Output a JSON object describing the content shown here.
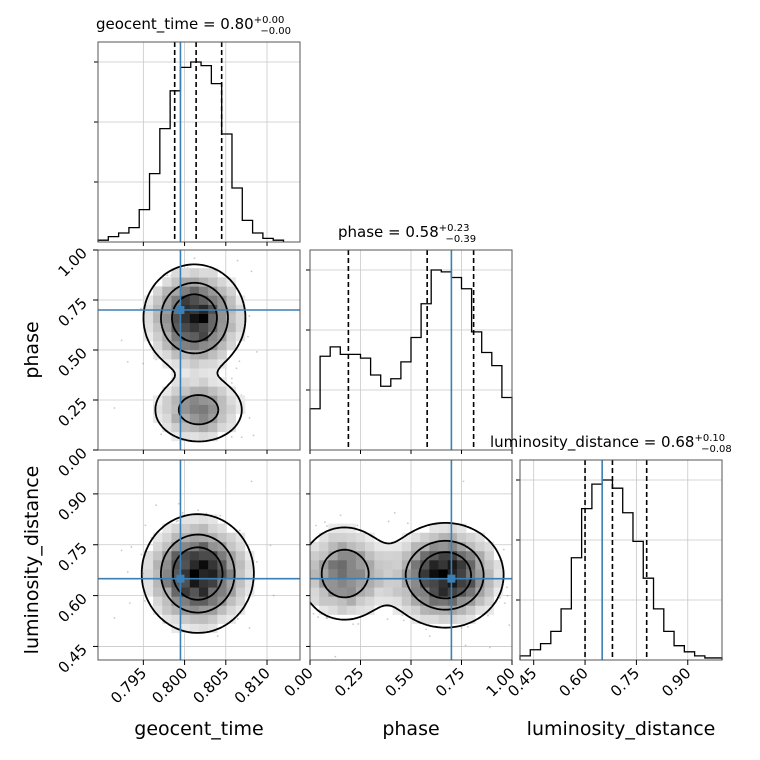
{
  "chart_data": {
    "type": "corner",
    "parameters": [
      {
        "key": "geocent_time",
        "label": "geocent_time",
        "title_main": "geocent_time = 0.80",
        "title_sup": "+0.00",
        "title_sub": "−0.00",
        "range": [
          0.7895,
          0.814
        ],
        "ticks": [
          0.795,
          0.8,
          0.805,
          0.81
        ],
        "tick_labels": [
          "0.795",
          "0.800",
          "0.805",
          "0.810"
        ],
        "truth": 0.7995,
        "quantiles": [
          0.7988,
          0.8014,
          0.8045
        ],
        "hist_bin_edges": [
          0.7895,
          0.79075,
          0.792,
          0.79325,
          0.7945,
          0.79575,
          0.797,
          0.79825,
          0.7995,
          0.80075,
          0.802,
          0.80325,
          0.8045,
          0.80575,
          0.807,
          0.80825,
          0.8095,
          0.81075,
          0.812
        ],
        "hist_counts": [
          0.01,
          0.03,
          0.05,
          0.08,
          0.18,
          0.38,
          0.63,
          0.84,
          0.97,
          1.0,
          0.98,
          0.88,
          0.6,
          0.3,
          0.12,
          0.05,
          0.02,
          0.01
        ]
      },
      {
        "key": "phase",
        "label": "phase",
        "title_main": "phase = 0.58",
        "title_sup": "+0.23",
        "title_sub": "−0.39",
        "range": [
          0.0,
          1.0
        ],
        "ticks": [
          0.0,
          0.25,
          0.5,
          0.75,
          1.0
        ],
        "tick_labels": [
          "0.00",
          "0.25",
          "0.50",
          "0.75",
          "1.00"
        ],
        "truth": 0.7,
        "quantiles": [
          0.19,
          0.58,
          0.81
        ],
        "hist_bin_edges": [
          0.0,
          0.05,
          0.1,
          0.15,
          0.2,
          0.25,
          0.3,
          0.35,
          0.4,
          0.45,
          0.5,
          0.55,
          0.6,
          0.65,
          0.7,
          0.75,
          0.8,
          0.85,
          0.9,
          0.95,
          1.0
        ],
        "hist_counts": [
          0.22,
          0.5,
          0.55,
          0.51,
          0.51,
          0.49,
          0.4,
          0.34,
          0.38,
          0.47,
          0.6,
          0.78,
          0.96,
          0.95,
          0.92,
          0.86,
          0.63,
          0.52,
          0.45,
          0.28
        ]
      },
      {
        "key": "luminosity_distance",
        "label": "luminosity_distance",
        "title_main": "luminosity_distance = 0.68",
        "title_sup": "+0.10",
        "title_sub": "−0.08",
        "range": [
          0.41,
          1.0
        ],
        "ticks": [
          0.45,
          0.6,
          0.75,
          0.9
        ],
        "tick_labels": [
          "0.45",
          "0.60",
          "0.75",
          "0.90"
        ],
        "truth": 0.65,
        "quantiles": [
          0.6,
          0.68,
          0.78
        ],
        "hist_bin_edges": [
          0.41,
          0.44,
          0.47,
          0.5,
          0.53,
          0.56,
          0.59,
          0.62,
          0.65,
          0.68,
          0.71,
          0.74,
          0.77,
          0.8,
          0.83,
          0.86,
          0.89,
          0.92,
          0.95,
          0.98,
          1.0
        ],
        "hist_counts": [
          0.02,
          0.05,
          0.08,
          0.14,
          0.25,
          0.5,
          0.74,
          0.86,
          0.88,
          0.84,
          0.72,
          0.58,
          0.4,
          0.25,
          0.14,
          0.07,
          0.04,
          0.02,
          0.01,
          0.01
        ]
      }
    ],
    "joint": [
      {
        "x": "geocent_time",
        "y": "phase",
        "modes": [
          {
            "cx": 0.8012,
            "cy": 0.66,
            "sx": 0.003,
            "sy": 0.13,
            "w": 1.0
          },
          {
            "cx": 0.8017,
            "cy": 0.2,
            "sx": 0.003,
            "sy": 0.09,
            "w": 0.55
          }
        ]
      },
      {
        "x": "geocent_time",
        "y": "luminosity_distance",
        "modes": [
          {
            "cx": 0.8016,
            "cy": 0.665,
            "sx": 0.0033,
            "sy": 0.085,
            "w": 1.0
          }
        ]
      },
      {
        "x": "phase",
        "y": "luminosity_distance",
        "modes": [
          {
            "cx": 0.17,
            "cy": 0.665,
            "sx": 0.12,
            "sy": 0.075,
            "w": 0.62
          },
          {
            "cx": 0.67,
            "cy": 0.66,
            "sx": 0.14,
            "sy": 0.075,
            "w": 1.0
          }
        ]
      }
    ],
    "contour_levels": [
      0.12,
      0.4,
      0.66
    ],
    "grid": true,
    "truth_color": "#3a7fb5",
    "hist_color": "#000000"
  }
}
